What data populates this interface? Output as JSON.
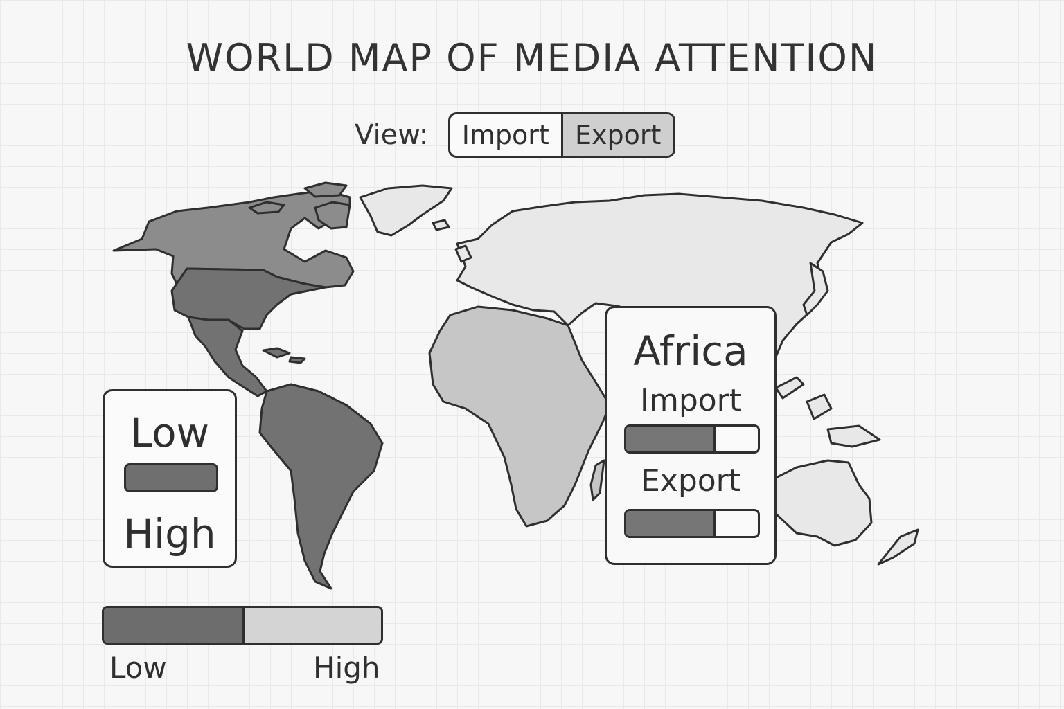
{
  "title": "WORLD MAP OF MEDIA ATTENTION",
  "view": {
    "label": "View:",
    "options": [
      "Import",
      "Export"
    ],
    "selected": "Export"
  },
  "legend": {
    "low_label": "Low",
    "high_label": "High",
    "swatch_color": "#6f6f6f"
  },
  "scale": {
    "low_label": "Low",
    "high_label": "High",
    "low_color": "#6d6d6d",
    "high_color": "#d4d4d4"
  },
  "map": {
    "regions": [
      {
        "name": "Canada",
        "shade": "medium"
      },
      {
        "name": "United States",
        "shade": "dark"
      },
      {
        "name": "Central America",
        "shade": "dark"
      },
      {
        "name": "South America",
        "shade": "dark"
      },
      {
        "name": "Greenland",
        "shade": "light"
      },
      {
        "name": "Africa",
        "shade": "medium-light"
      },
      {
        "name": "Europe",
        "shade": "light"
      },
      {
        "name": "Asia",
        "shade": "light"
      },
      {
        "name": "Australia",
        "shade": "light"
      }
    ],
    "colors": {
      "dark": "#727272",
      "medium": "#8c8c8c",
      "medium-light": "#c6c6c6",
      "light": "#e8e8e8",
      "outline": "#2f2f2f"
    }
  },
  "info_card": {
    "region": "Africa",
    "metrics": [
      {
        "label": "Import",
        "level": 0.68
      },
      {
        "label": "Export",
        "level": 0.68
      }
    ]
  }
}
